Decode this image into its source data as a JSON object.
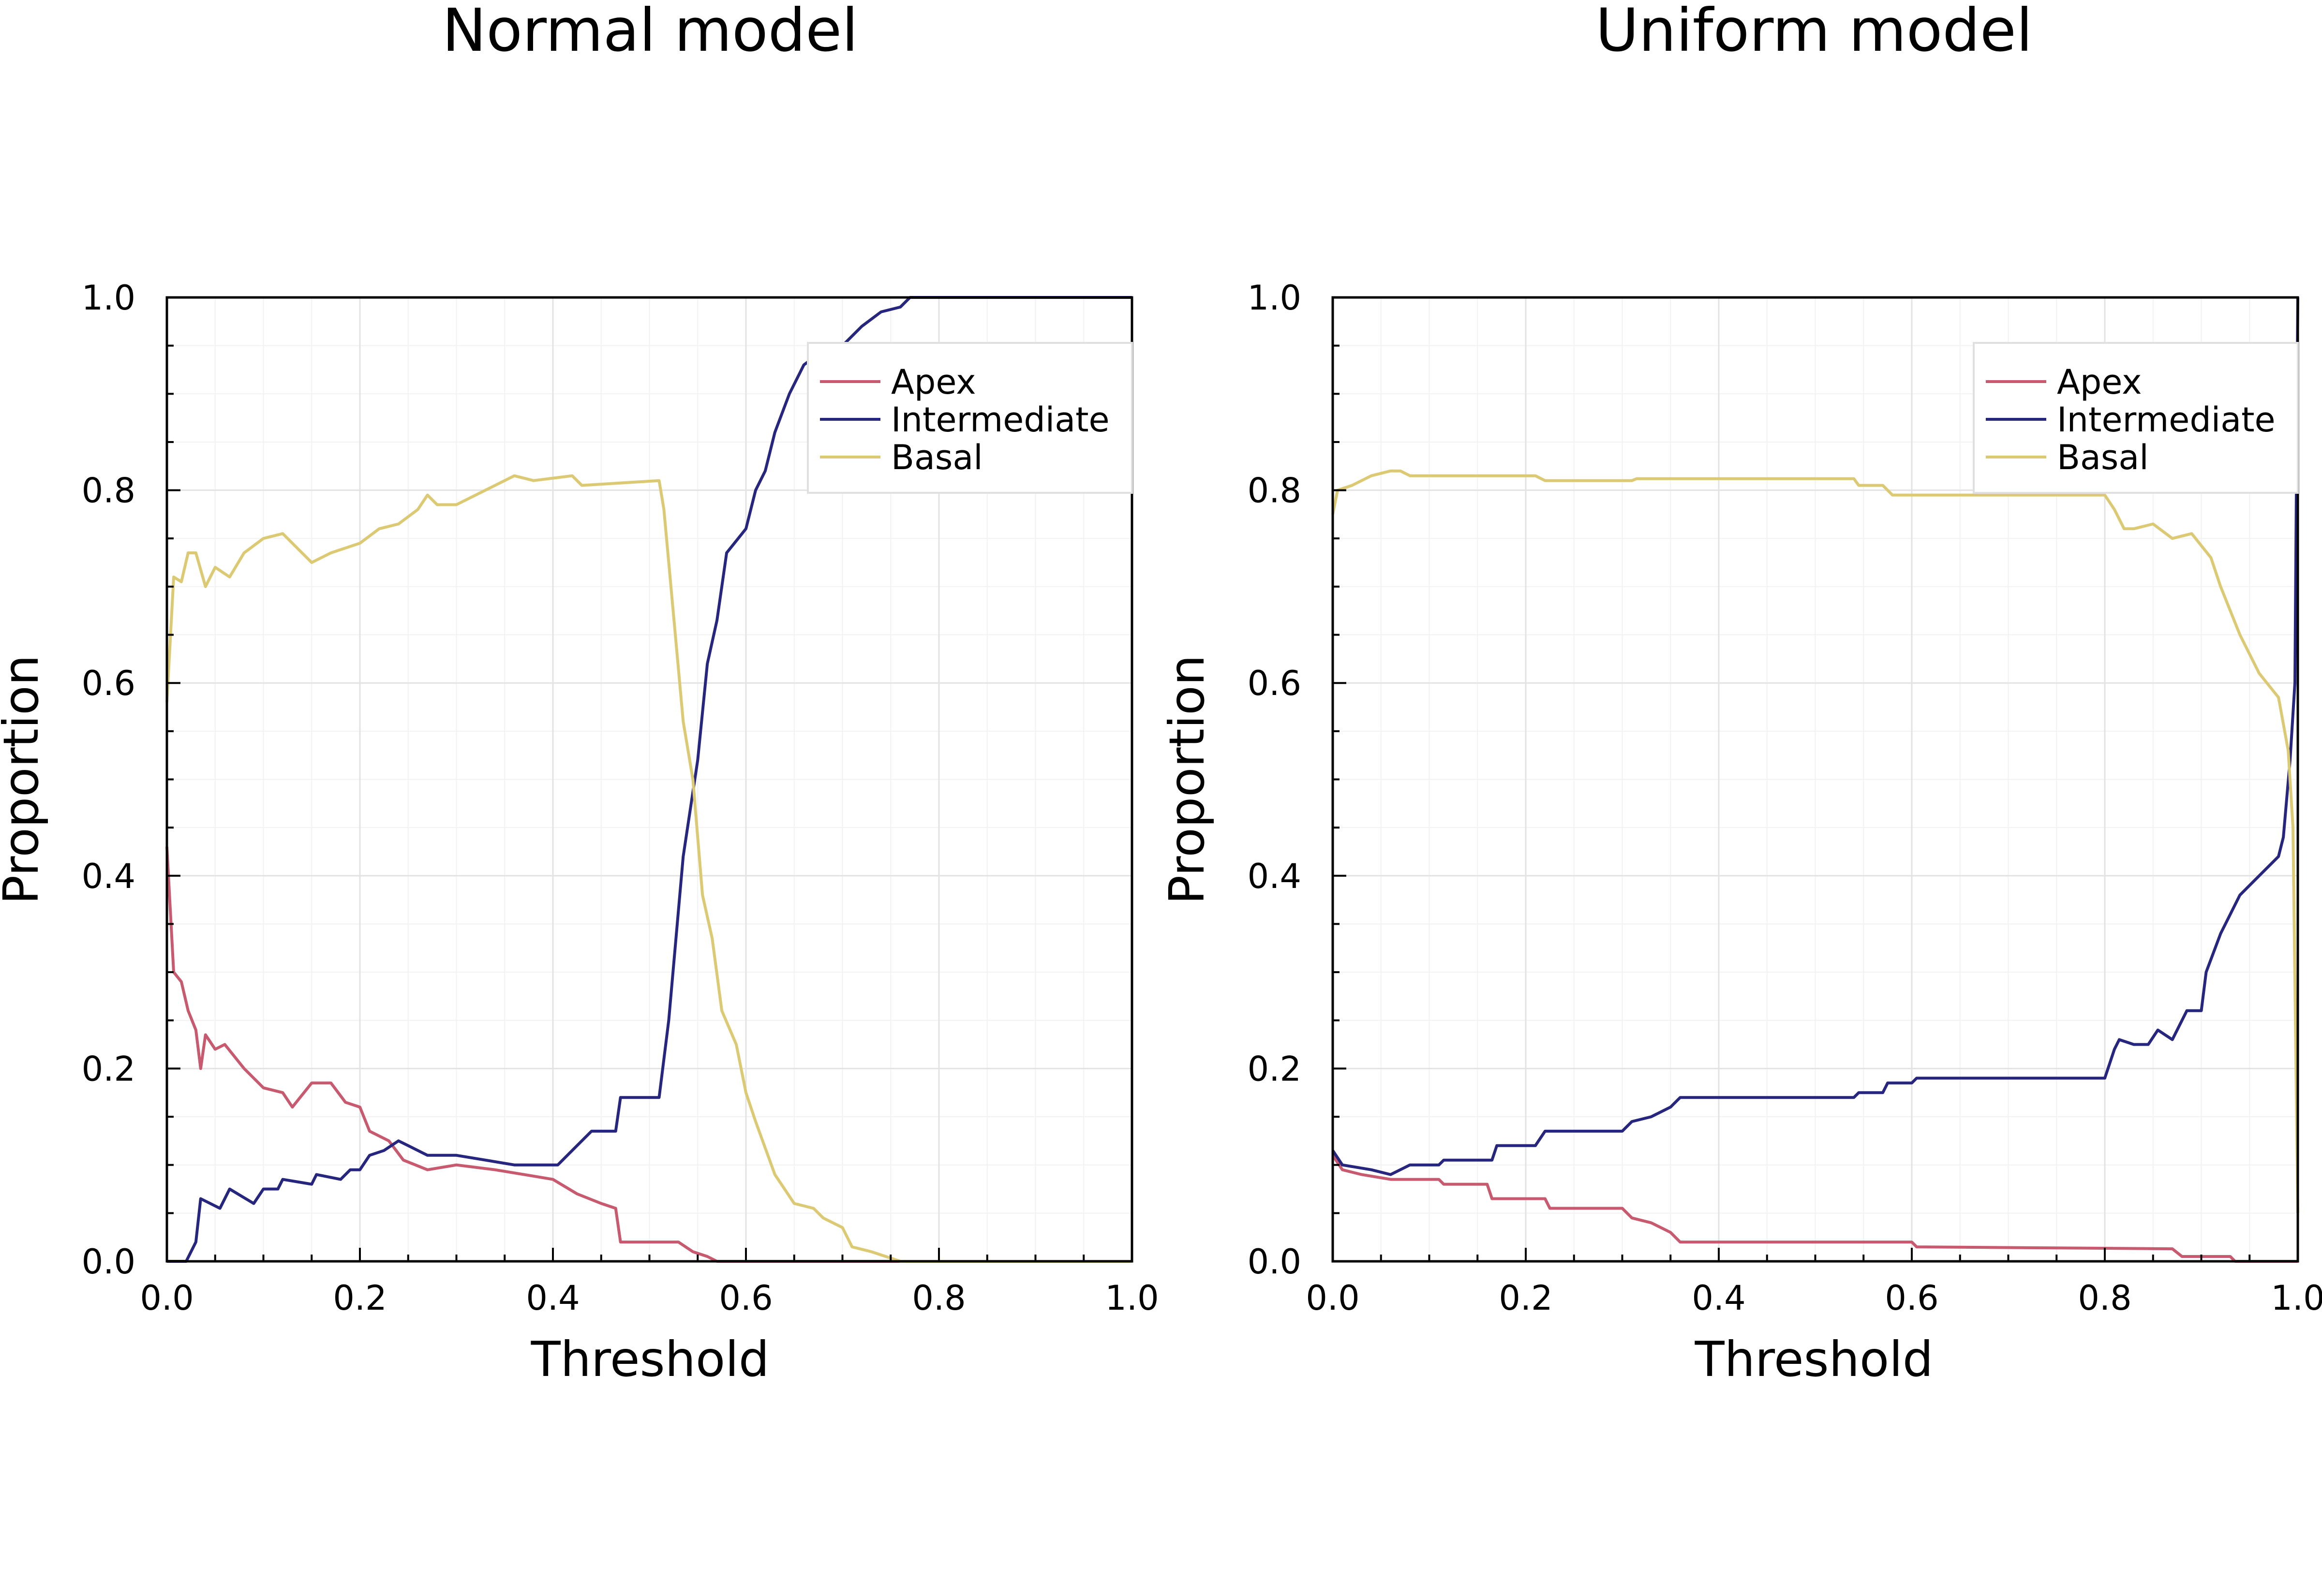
{
  "chart_data": [
    {
      "type": "line",
      "title": "Normal model",
      "xlabel": "Threshold",
      "ylabel": "Proportion",
      "xlim": [
        0,
        1
      ],
      "ylim": [
        0,
        1
      ],
      "x_ticks": [
        "0.0",
        "0.2",
        "0.4",
        "0.6",
        "0.8",
        "1.0"
      ],
      "y_ticks": [
        "0.0",
        "0.2",
        "0.4",
        "0.6",
        "0.8",
        "1.0"
      ],
      "grid": true,
      "legend_position": "top-right",
      "series": [
        {
          "name": "Apex",
          "color": "#c75a6e",
          "points": [
            [
              0.0,
              0.43
            ],
            [
              0.007,
              0.3
            ],
            [
              0.015,
              0.29
            ],
            [
              0.022,
              0.26
            ],
            [
              0.03,
              0.24
            ],
            [
              0.035,
              0.2
            ],
            [
              0.04,
              0.235
            ],
            [
              0.05,
              0.22
            ],
            [
              0.06,
              0.225
            ],
            [
              0.08,
              0.2
            ],
            [
              0.1,
              0.18
            ],
            [
              0.12,
              0.175
            ],
            [
              0.13,
              0.16
            ],
            [
              0.15,
              0.185
            ],
            [
              0.17,
              0.185
            ],
            [
              0.185,
              0.165
            ],
            [
              0.2,
              0.16
            ],
            [
              0.21,
              0.135
            ],
            [
              0.23,
              0.125
            ],
            [
              0.245,
              0.105
            ],
            [
              0.27,
              0.095
            ],
            [
              0.3,
              0.1
            ],
            [
              0.34,
              0.095
            ],
            [
              0.37,
              0.09
            ],
            [
              0.4,
              0.085
            ],
            [
              0.425,
              0.07
            ],
            [
              0.45,
              0.06
            ],
            [
              0.465,
              0.055
            ],
            [
              0.47,
              0.02
            ],
            [
              0.53,
              0.02
            ],
            [
              0.545,
              0.01
            ],
            [
              0.56,
              0.005
            ],
            [
              0.57,
              0.0
            ],
            [
              1.0,
              0.0
            ]
          ]
        },
        {
          "name": "Intermediate",
          "color": "#27267e",
          "points": [
            [
              0.0,
              0.0
            ],
            [
              0.02,
              0.0
            ],
            [
              0.03,
              0.02
            ],
            [
              0.035,
              0.065
            ],
            [
              0.055,
              0.055
            ],
            [
              0.065,
              0.075
            ],
            [
              0.09,
              0.06
            ],
            [
              0.1,
              0.075
            ],
            [
              0.115,
              0.075
            ],
            [
              0.12,
              0.085
            ],
            [
              0.15,
              0.08
            ],
            [
              0.155,
              0.09
            ],
            [
              0.18,
              0.085
            ],
            [
              0.19,
              0.095
            ],
            [
              0.2,
              0.095
            ],
            [
              0.21,
              0.11
            ],
            [
              0.225,
              0.115
            ],
            [
              0.24,
              0.125
            ],
            [
              0.25,
              0.12
            ],
            [
              0.27,
              0.11
            ],
            [
              0.3,
              0.11
            ],
            [
              0.33,
              0.105
            ],
            [
              0.36,
              0.1
            ],
            [
              0.38,
              0.1
            ],
            [
              0.405,
              0.1
            ],
            [
              0.42,
              0.115
            ],
            [
              0.44,
              0.135
            ],
            [
              0.465,
              0.135
            ],
            [
              0.47,
              0.17
            ],
            [
              0.51,
              0.17
            ],
            [
              0.52,
              0.25
            ],
            [
              0.535,
              0.42
            ],
            [
              0.55,
              0.52
            ],
            [
              0.56,
              0.62
            ],
            [
              0.57,
              0.665
            ],
            [
              0.58,
              0.735
            ],
            [
              0.6,
              0.76
            ],
            [
              0.61,
              0.8
            ],
            [
              0.62,
              0.82
            ],
            [
              0.63,
              0.86
            ],
            [
              0.645,
              0.9
            ],
            [
              0.66,
              0.93
            ],
            [
              0.68,
              0.945
            ],
            [
              0.7,
              0.95
            ],
            [
              0.72,
              0.97
            ],
            [
              0.74,
              0.985
            ],
            [
              0.76,
              0.99
            ],
            [
              0.77,
              1.0
            ],
            [
              1.0,
              1.0
            ]
          ]
        },
        {
          "name": "Basal",
          "color": "#dcc973",
          "points": [
            [
              0.0,
              0.58
            ],
            [
              0.007,
              0.71
            ],
            [
              0.015,
              0.705
            ],
            [
              0.022,
              0.735
            ],
            [
              0.03,
              0.735
            ],
            [
              0.04,
              0.7
            ],
            [
              0.05,
              0.72
            ],
            [
              0.065,
              0.71
            ],
            [
              0.08,
              0.735
            ],
            [
              0.1,
              0.75
            ],
            [
              0.12,
              0.755
            ],
            [
              0.14,
              0.735
            ],
            [
              0.15,
              0.725
            ],
            [
              0.17,
              0.735
            ],
            [
              0.2,
              0.745
            ],
            [
              0.22,
              0.76
            ],
            [
              0.24,
              0.765
            ],
            [
              0.26,
              0.78
            ],
            [
              0.27,
              0.795
            ],
            [
              0.28,
              0.785
            ],
            [
              0.3,
              0.785
            ],
            [
              0.33,
              0.8
            ],
            [
              0.36,
              0.815
            ],
            [
              0.38,
              0.81
            ],
            [
              0.42,
              0.815
            ],
            [
              0.43,
              0.805
            ],
            [
              0.51,
              0.81
            ],
            [
              0.515,
              0.78
            ],
            [
              0.525,
              0.67
            ],
            [
              0.535,
              0.56
            ],
            [
              0.545,
              0.5
            ],
            [
              0.555,
              0.38
            ],
            [
              0.565,
              0.335
            ],
            [
              0.575,
              0.26
            ],
            [
              0.59,
              0.225
            ],
            [
              0.6,
              0.175
            ],
            [
              0.61,
              0.145
            ],
            [
              0.63,
              0.09
            ],
            [
              0.65,
              0.06
            ],
            [
              0.67,
              0.055
            ],
            [
              0.68,
              0.045
            ],
            [
              0.7,
              0.035
            ],
            [
              0.71,
              0.015
            ],
            [
              0.73,
              0.01
            ],
            [
              0.76,
              0.0
            ],
            [
              1.0,
              0.0
            ]
          ]
        }
      ]
    },
    {
      "type": "line",
      "title": "Uniform model",
      "xlabel": "Threshold",
      "ylabel": "Proportion",
      "xlim": [
        0,
        1
      ],
      "ylim": [
        0,
        1
      ],
      "x_ticks": [
        "0.0",
        "0.2",
        "0.4",
        "0.6",
        "0.8",
        "1.0"
      ],
      "y_ticks": [
        "0.0",
        "0.2",
        "0.4",
        "0.6",
        "0.8",
        "1.0"
      ],
      "grid": true,
      "legend_position": "top-right",
      "series": [
        {
          "name": "Apex",
          "color": "#c75a6e",
          "points": [
            [
              0.0,
              0.11
            ],
            [
              0.01,
              0.095
            ],
            [
              0.03,
              0.09
            ],
            [
              0.06,
              0.085
            ],
            [
              0.11,
              0.085
            ],
            [
              0.115,
              0.08
            ],
            [
              0.16,
              0.08
            ],
            [
              0.165,
              0.065
            ],
            [
              0.22,
              0.065
            ],
            [
              0.225,
              0.055
            ],
            [
              0.3,
              0.055
            ],
            [
              0.31,
              0.045
            ],
            [
              0.33,
              0.04
            ],
            [
              0.35,
              0.03
            ],
            [
              0.36,
              0.02
            ],
            [
              0.6,
              0.02
            ],
            [
              0.605,
              0.015
            ],
            [
              0.87,
              0.013
            ],
            [
              0.88,
              0.005
            ],
            [
              0.93,
              0.005
            ],
            [
              0.935,
              0.0
            ],
            [
              1.0,
              0.0
            ]
          ]
        },
        {
          "name": "Intermediate",
          "color": "#27267e",
          "points": [
            [
              0.0,
              0.115
            ],
            [
              0.01,
              0.1
            ],
            [
              0.04,
              0.095
            ],
            [
              0.06,
              0.09
            ],
            [
              0.08,
              0.1
            ],
            [
              0.11,
              0.1
            ],
            [
              0.115,
              0.105
            ],
            [
              0.165,
              0.105
            ],
            [
              0.17,
              0.12
            ],
            [
              0.21,
              0.12
            ],
            [
              0.22,
              0.135
            ],
            [
              0.3,
              0.135
            ],
            [
              0.31,
              0.145
            ],
            [
              0.33,
              0.15
            ],
            [
              0.35,
              0.16
            ],
            [
              0.36,
              0.17
            ],
            [
              0.54,
              0.17
            ],
            [
              0.545,
              0.175
            ],
            [
              0.57,
              0.175
            ],
            [
              0.575,
              0.185
            ],
            [
              0.6,
              0.185
            ],
            [
              0.605,
              0.19
            ],
            [
              0.8,
              0.19
            ],
            [
              0.81,
              0.22
            ],
            [
              0.815,
              0.23
            ],
            [
              0.83,
              0.225
            ],
            [
              0.845,
              0.225
            ],
            [
              0.855,
              0.24
            ],
            [
              0.87,
              0.23
            ],
            [
              0.885,
              0.26
            ],
            [
              0.9,
              0.26
            ],
            [
              0.905,
              0.3
            ],
            [
              0.92,
              0.34
            ],
            [
              0.94,
              0.38
            ],
            [
              0.96,
              0.4
            ],
            [
              0.98,
              0.42
            ],
            [
              0.985,
              0.44
            ],
            [
              0.992,
              0.52
            ],
            [
              0.997,
              0.6
            ],
            [
              1.0,
              1.0
            ]
          ]
        },
        {
          "name": "Basal",
          "color": "#dcc973",
          "points": [
            [
              0.0,
              0.775
            ],
            [
              0.005,
              0.8
            ],
            [
              0.02,
              0.805
            ],
            [
              0.04,
              0.815
            ],
            [
              0.06,
              0.82
            ],
            [
              0.07,
              0.82
            ],
            [
              0.08,
              0.815
            ],
            [
              0.21,
              0.815
            ],
            [
              0.22,
              0.81
            ],
            [
              0.31,
              0.81
            ],
            [
              0.315,
              0.812
            ],
            [
              0.54,
              0.812
            ],
            [
              0.545,
              0.805
            ],
            [
              0.57,
              0.805
            ],
            [
              0.58,
              0.795
            ],
            [
              0.8,
              0.795
            ],
            [
              0.81,
              0.78
            ],
            [
              0.82,
              0.76
            ],
            [
              0.83,
              0.76
            ],
            [
              0.85,
              0.765
            ],
            [
              0.87,
              0.75
            ],
            [
              0.89,
              0.755
            ],
            [
              0.91,
              0.73
            ],
            [
              0.92,
              0.7
            ],
            [
              0.94,
              0.65
            ],
            [
              0.96,
              0.61
            ],
            [
              0.98,
              0.585
            ],
            [
              0.99,
              0.53
            ],
            [
              0.995,
              0.45
            ],
            [
              1.0,
              0.05
            ]
          ]
        }
      ]
    }
  ]
}
